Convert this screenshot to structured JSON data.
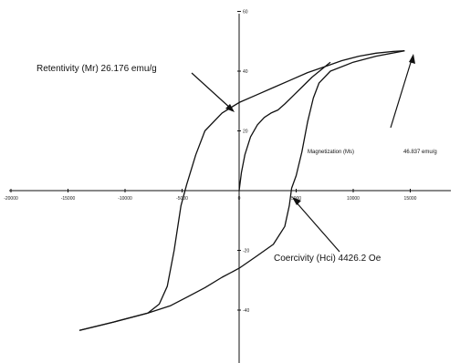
{
  "chart_data": {
    "type": "line",
    "title": "",
    "xlabel": "",
    "ylabel": "",
    "xlim": [
      -20000,
      20000
    ],
    "ylim": [
      -60,
      60
    ],
    "grid": false,
    "x_ticks": [
      -20000,
      -15000,
      -10000,
      -5000,
      0,
      5000,
      10000,
      15000,
      20000
    ],
    "x_tick_labels": [
      "-20000",
      "-15000",
      "-10000",
      "-5000",
      "0",
      "5000",
      "10000",
      "15000",
      "20000"
    ],
    "y_ticks": [
      -60,
      -40,
      -20,
      0,
      20,
      40,
      60
    ],
    "y_tick_labels": [
      "-60",
      "-40",
      "-20",
      "0",
      "20",
      "40",
      "60"
    ],
    "series": [
      {
        "x": [
          -14000,
          -11000,
          -8000,
          -7000,
          -6300,
          -5700,
          -5100,
          -4600,
          -4200,
          -3800,
          -3000,
          -1500,
          0,
          1500,
          3000,
          4500,
          6000,
          7500,
          9000,
          10500,
          12000,
          13500,
          14500
        ],
        "y": [
          -46.8,
          -44.0,
          -41.0,
          -38.0,
          -32.0,
          -20.0,
          -5.0,
          2.0,
          7.0,
          12.0,
          20.0,
          26.0,
          29.5,
          32.0,
          34.5,
          37.0,
          39.5,
          41.5,
          43.5,
          45.0,
          46.0,
          46.6,
          46.8
        ]
      },
      {
        "x": [
          14500,
          12000,
          10000,
          8000,
          7000,
          6500,
          6000,
          5500,
          5000,
          4600,
          4400,
          4000,
          3000,
          1500,
          0,
          -1500,
          -3000,
          -4500,
          -6000,
          -8000,
          -11000,
          -14000
        ],
        "y": [
          46.8,
          45.0,
          43.0,
          40.0,
          36.0,
          31.0,
          23.0,
          13.0,
          5.0,
          0.8,
          -5.0,
          -12.0,
          -18.0,
          -22.0,
          -26.0,
          -29.0,
          -32.5,
          -35.5,
          -38.5,
          -41.0,
          -44.0,
          -46.8
        ]
      },
      {
        "x": [
          0,
          200,
          500,
          1000,
          1600,
          2200,
          2800,
          3400,
          4000,
          4800,
          5600,
          6400,
          7200,
          8000
        ],
        "y": [
          0,
          6,
          12,
          18,
          22,
          24.5,
          26,
          27,
          29,
          32,
          35,
          38,
          40.5,
          43
        ]
      }
    ],
    "annotations": [
      {
        "text": "Retentivity (Mr) 26.176 emu/g"
      },
      {
        "text": "Magnetization (Ms)"
      },
      {
        "text": "46.837 emu/g"
      },
      {
        "text": "Coercivity (Hci) 4426.2 Oe"
      }
    ]
  }
}
